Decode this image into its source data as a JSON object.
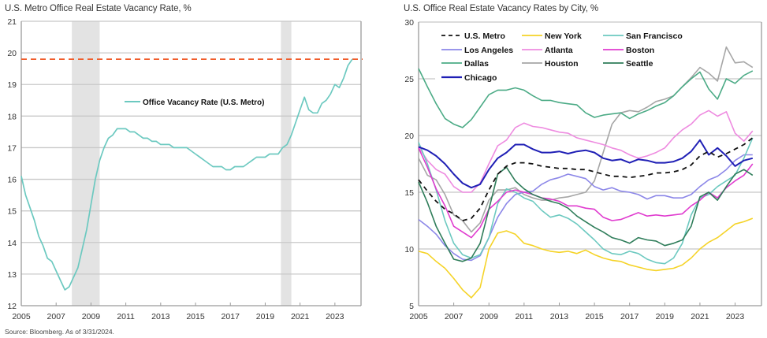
{
  "source_note": "Source: Bloomberg. As of 3/31/2024.",
  "chart_data": [
    {
      "type": "line",
      "title": "U.S. Metro Office Real Estate Vacancy Rate, %",
      "xlabel": "",
      "ylabel": "",
      "xlim": [
        2005,
        2024.5
      ],
      "ylim": [
        12,
        21
      ],
      "x_ticks": [
        "2005",
        "2007",
        "2009",
        "2011",
        "2013",
        "2015",
        "2017",
        "2019",
        "2021",
        "2023"
      ],
      "y_ticks": [
        "12",
        "13",
        "14",
        "15",
        "16",
        "17",
        "18",
        "19",
        "20",
        "21"
      ],
      "grid": true,
      "recessions": [
        [
          2007.9,
          2009.5
        ],
        [
          2019.9,
          2020.5
        ]
      ],
      "reference_line": {
        "value": 19.8,
        "color": "#f05a28",
        "style": "dashed"
      },
      "legend": {
        "placement": "center-left",
        "entries": [
          "Office Vacancy Rate (U.S. Metro)"
        ]
      },
      "series": [
        {
          "name": "Office Vacancy Rate (U.S. Metro)",
          "color": "#6cc9c0",
          "x": [
            2005,
            2005.25,
            2005.5,
            2005.75,
            2006,
            2006.25,
            2006.5,
            2006.75,
            2007,
            2007.25,
            2007.5,
            2007.75,
            2008,
            2008.25,
            2008.5,
            2008.75,
            2009,
            2009.25,
            2009.5,
            2009.75,
            2010,
            2010.25,
            2010.5,
            2010.75,
            2011,
            2011.25,
            2011.5,
            2011.75,
            2012,
            2012.25,
            2012.5,
            2012.75,
            2013,
            2013.25,
            2013.5,
            2013.75,
            2014,
            2014.25,
            2014.5,
            2014.75,
            2015,
            2015.25,
            2015.5,
            2015.75,
            2016,
            2016.25,
            2016.5,
            2016.75,
            2017,
            2017.25,
            2017.5,
            2017.75,
            2018,
            2018.25,
            2018.5,
            2018.75,
            2019,
            2019.25,
            2019.5,
            2019.75,
            2020,
            2020.25,
            2020.5,
            2020.75,
            2021,
            2021.25,
            2021.5,
            2021.75,
            2022,
            2022.25,
            2022.5,
            2022.75,
            2023,
            2023.25,
            2023.5,
            2023.75,
            2024
          ],
          "values": [
            16.1,
            15.5,
            15.1,
            14.7,
            14.2,
            13.9,
            13.5,
            13.4,
            13.1,
            12.8,
            12.5,
            12.6,
            12.9,
            13.2,
            13.8,
            14.4,
            15.2,
            16.0,
            16.6,
            17.0,
            17.3,
            17.4,
            17.6,
            17.6,
            17.6,
            17.5,
            17.5,
            17.4,
            17.3,
            17.3,
            17.2,
            17.2,
            17.1,
            17.1,
            17.1,
            17.0,
            17.0,
            17.0,
            17.0,
            16.9,
            16.8,
            16.7,
            16.6,
            16.5,
            16.4,
            16.4,
            16.4,
            16.3,
            16.3,
            16.4,
            16.4,
            16.4,
            16.5,
            16.6,
            16.7,
            16.7,
            16.7,
            16.8,
            16.8,
            16.8,
            17.0,
            17.1,
            17.4,
            17.8,
            18.2,
            18.6,
            18.2,
            18.1,
            18.1,
            18.4,
            18.5,
            18.7,
            19.0,
            18.9,
            19.2,
            19.6,
            19.8
          ]
        }
      ]
    },
    {
      "type": "line",
      "title": "U.S. Office Real Estate Vacancy Rates by City, %",
      "xlabel": "",
      "ylabel": "",
      "xlim": [
        2005,
        2024.5
      ],
      "ylim": [
        5,
        30
      ],
      "x_ticks": [
        "2005",
        "2007",
        "2009",
        "2011",
        "2013",
        "2015",
        "2017",
        "2019",
        "2021",
        "2023"
      ],
      "y_ticks": [
        "5",
        "10",
        "15",
        "20",
        "25",
        "30"
      ],
      "grid": true,
      "legend": {
        "placement": "top-left",
        "columns": 3
      },
      "x": [
        2005,
        2005.5,
        2006,
        2006.5,
        2007,
        2007.5,
        2008,
        2008.5,
        2009,
        2009.5,
        2010,
        2010.5,
        2011,
        2011.5,
        2012,
        2012.5,
        2013,
        2013.5,
        2014,
        2014.5,
        2015,
        2015.5,
        2016,
        2016.5,
        2017,
        2017.5,
        2018,
        2018.5,
        2019,
        2019.5,
        2020,
        2020.5,
        2021,
        2021.5,
        2022,
        2022.5,
        2023,
        2023.5,
        2024
      ],
      "series": [
        {
          "name": "U.S. Metro",
          "color": "#111111",
          "dashed": true,
          "values": [
            16.1,
            15.1,
            14.2,
            13.5,
            13.1,
            12.5,
            12.7,
            13.6,
            15.2,
            16.6,
            17.3,
            17.6,
            17.6,
            17.5,
            17.3,
            17.2,
            17.1,
            17.1,
            17.0,
            17.0,
            16.8,
            16.6,
            16.4,
            16.4,
            16.3,
            16.4,
            16.5,
            16.7,
            16.7,
            16.8,
            17.0,
            17.4,
            18.2,
            18.6,
            18.1,
            18.4,
            18.8,
            19.2,
            19.8
          ]
        },
        {
          "name": "New York",
          "color": "#f5d327",
          "values": [
            9.8,
            9.6,
            8.9,
            8.3,
            7.4,
            6.4,
            5.7,
            6.6,
            10.0,
            11.4,
            11.6,
            11.3,
            10.5,
            10.3,
            10.0,
            9.8,
            9.7,
            9.8,
            9.6,
            9.9,
            9.5,
            9.2,
            9.0,
            8.9,
            8.6,
            8.4,
            8.2,
            8.1,
            8.2,
            8.3,
            8.6,
            9.2,
            10.0,
            10.6,
            11.0,
            11.6,
            12.2,
            12.4,
            12.7
          ]
        },
        {
          "name": "San Francisco",
          "color": "#6cc9c0",
          "values": [
            19.4,
            17.5,
            15.2,
            12.5,
            10.5,
            9.5,
            9.2,
            9.5,
            11.0,
            14.0,
            15.3,
            15.0,
            14.5,
            14.2,
            13.4,
            12.8,
            13.0,
            12.7,
            12.2,
            11.5,
            10.8,
            10.0,
            9.6,
            9.5,
            9.8,
            9.6,
            9.1,
            8.8,
            8.7,
            9.2,
            10.5,
            13.0,
            14.5,
            14.8,
            15.5,
            16.0,
            16.5,
            18.0,
            19.8
          ]
        },
        {
          "name": "Los Angeles",
          "color": "#8c87e8",
          "values": [
            12.6,
            12.0,
            11.3,
            10.3,
            9.6,
            9.1,
            9.0,
            9.4,
            11.0,
            12.8,
            14.0,
            14.8,
            15.0,
            15.1,
            15.7,
            16.1,
            16.3,
            16.6,
            16.4,
            16.2,
            15.5,
            15.2,
            15.4,
            15.1,
            15.0,
            14.8,
            14.4,
            14.7,
            14.7,
            14.5,
            14.5,
            14.8,
            15.5,
            16.1,
            16.4,
            17.0,
            17.8,
            18.3,
            18.3
          ]
        },
        {
          "name": "Atlanta",
          "color": "#ee8be0",
          "values": [
            19.0,
            17.8,
            17.0,
            16.6,
            15.5,
            15.0,
            15.0,
            15.8,
            17.5,
            19.1,
            19.6,
            20.7,
            21.1,
            20.8,
            20.7,
            20.5,
            20.3,
            20.2,
            19.8,
            19.6,
            19.4,
            19.2,
            18.9,
            18.7,
            18.3,
            18.0,
            18.2,
            18.5,
            18.9,
            19.8,
            20.5,
            21.0,
            21.8,
            22.2,
            21.7,
            22.1,
            20.2,
            19.5,
            20.4
          ]
        },
        {
          "name": "Boston",
          "color": "#e03ccf",
          "values": [
            18.9,
            17.2,
            15.3,
            13.8,
            12.0,
            11.5,
            11.0,
            11.9,
            13.5,
            14.2,
            15.0,
            15.2,
            15.0,
            14.8,
            14.5,
            14.4,
            14.2,
            13.8,
            13.8,
            13.6,
            13.5,
            12.8,
            12.5,
            12.6,
            12.9,
            13.2,
            12.9,
            13.0,
            12.9,
            13.0,
            13.1,
            13.8,
            14.3,
            15.0,
            14.5,
            15.4,
            16.0,
            16.5,
            17.5
          ]
        },
        {
          "name": "Dallas",
          "color": "#4cab86",
          "values": [
            25.9,
            24.3,
            22.8,
            21.5,
            21.0,
            20.7,
            21.4,
            22.5,
            23.6,
            24.0,
            24.0,
            24.2,
            24.0,
            23.5,
            23.1,
            23.1,
            22.9,
            22.8,
            22.7,
            22.0,
            21.6,
            21.8,
            21.9,
            22.0,
            21.5,
            21.9,
            22.2,
            22.6,
            22.9,
            23.5,
            24.3,
            25.0,
            25.6,
            24.1,
            23.2,
            25.0,
            24.6,
            25.3,
            25.7
          ]
        },
        {
          "name": "Houston",
          "color": "#a6a6a6",
          "values": [
            18.0,
            16.5,
            16.1,
            14.8,
            13.0,
            12.5,
            11.5,
            12.3,
            14.3,
            15.2,
            15.2,
            15.4,
            14.8,
            14.5,
            14.3,
            14.3,
            14.5,
            14.6,
            14.8,
            15.0,
            16.0,
            18.5,
            21.0,
            22.0,
            22.2,
            22.1,
            22.5,
            23.0,
            23.2,
            23.5,
            24.3,
            25.1,
            26.0,
            25.5,
            24.8,
            27.8,
            26.4,
            26.5,
            26.0
          ]
        },
        {
          "name": "Seattle",
          "color": "#2f7d5a",
          "values": [
            15.9,
            14.1,
            12.0,
            10.5,
            9.1,
            8.9,
            9.2,
            10.5,
            13.5,
            16.6,
            17.2,
            16.0,
            15.3,
            14.8,
            14.5,
            14.2,
            14.0,
            13.6,
            12.9,
            12.4,
            11.9,
            11.5,
            11.0,
            10.8,
            10.5,
            11.0,
            10.8,
            10.7,
            10.3,
            10.5,
            10.8,
            12.0,
            14.6,
            15.0,
            14.3,
            15.5,
            16.6,
            17.0,
            16.5
          ]
        },
        {
          "name": "Chicago",
          "color": "#1f1fb5",
          "values": [
            19.0,
            18.7,
            18.2,
            17.5,
            16.6,
            15.8,
            15.4,
            15.7,
            17.0,
            18.0,
            18.5,
            19.2,
            19.2,
            18.8,
            18.5,
            18.5,
            18.6,
            18.4,
            18.6,
            18.7,
            18.5,
            18.0,
            17.8,
            17.9,
            17.6,
            17.9,
            17.8,
            17.6,
            17.6,
            17.7,
            18.0,
            18.6,
            19.6,
            18.3,
            18.9,
            18.2,
            17.3,
            17.8,
            18.0
          ]
        }
      ]
    }
  ]
}
